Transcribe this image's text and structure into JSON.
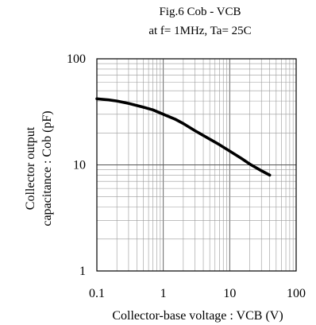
{
  "chart_data": {
    "type": "line",
    "title": "Fig.6  Cob - VCB",
    "subtitle": "at f= 1MHz, Ta= 25C",
    "xlabel": "Collector-base voltage : VCB (V)",
    "ylabel_line1": "Collector output",
    "ylabel_line2": "capacitance : Cob (pF)",
    "x_scale": "log",
    "y_scale": "log",
    "xlim": [
      0.1,
      100
    ],
    "ylim": [
      1,
      100
    ],
    "x_ticks": [
      0.1,
      1,
      10,
      100
    ],
    "x_tick_labels": [
      "0.1",
      "1",
      "10",
      "100"
    ],
    "y_ticks": [
      1,
      10,
      100
    ],
    "y_tick_labels": [
      "1",
      "10",
      "100"
    ],
    "grid": true,
    "legend": "none",
    "line_color": "#000000",
    "series": [
      {
        "x": [
          0.1,
          0.15,
          0.2,
          0.3,
          0.5,
          0.7,
          1,
          1.5,
          2,
          3,
          5,
          7,
          10,
          15,
          20,
          30,
          40
        ],
        "y": [
          42,
          41,
          40,
          38,
          35,
          33,
          30,
          27,
          24.5,
          21,
          17.5,
          15.5,
          13.5,
          11.5,
          10.2,
          8.8,
          8.0
        ]
      }
    ]
  }
}
